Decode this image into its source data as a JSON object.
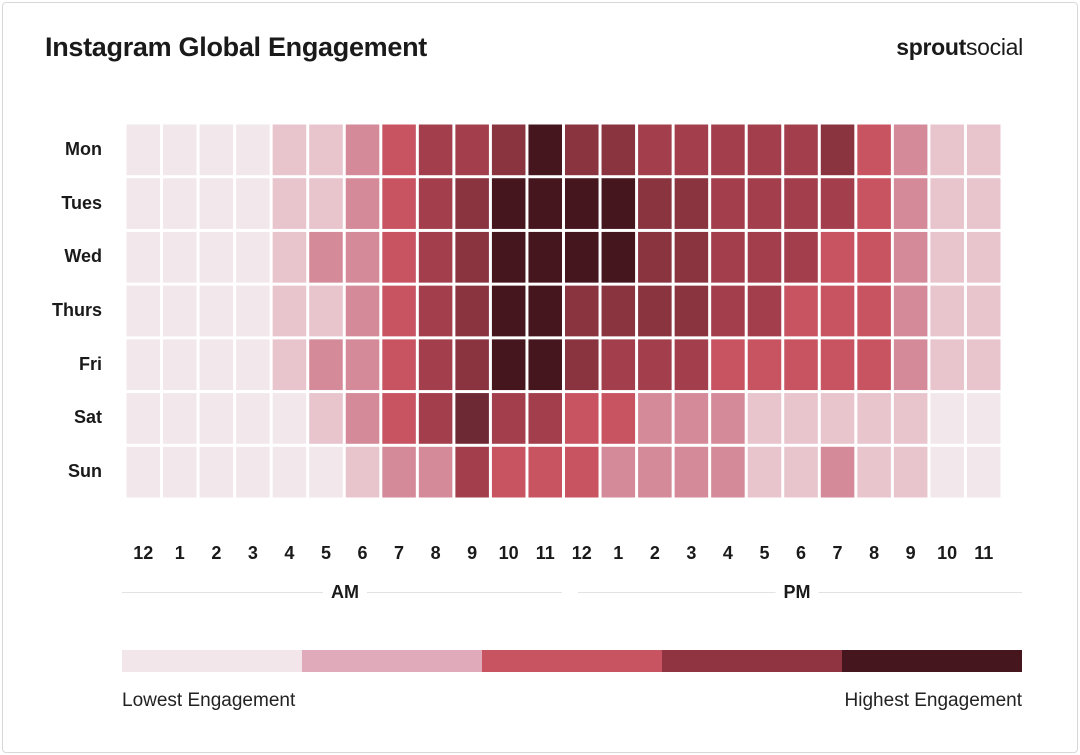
{
  "title": "Instagram Global Engagement",
  "brand": {
    "bold": "sprout",
    "light": "social"
  },
  "chart_data": {
    "type": "heatmap",
    "title": "Instagram Global Engagement",
    "rows": [
      "Mon",
      "Tues",
      "Wed",
      "Thurs",
      "Fri",
      "Sat",
      "Sun"
    ],
    "columns": [
      "12",
      "1",
      "2",
      "3",
      "4",
      "5",
      "6",
      "7",
      "8",
      "9",
      "10",
      "11",
      "12",
      "1",
      "2",
      "3",
      "4",
      "5",
      "6",
      "7",
      "8",
      "9",
      "10",
      "11"
    ],
    "column_groups": [
      "AM",
      "PM"
    ],
    "scale": {
      "min": 1,
      "max": 8,
      "note_low": "Lowest Engagement",
      "note_high": "Highest Engagement"
    },
    "values": [
      [
        1,
        1,
        1,
        1,
        2,
        2,
        3,
        4,
        5,
        5,
        6,
        8,
        6,
        6,
        5,
        5,
        5,
        5,
        5,
        6,
        4,
        3,
        2,
        2
      ],
      [
        1,
        1,
        1,
        1,
        2,
        2,
        3,
        4,
        5,
        6,
        8,
        8,
        8,
        8,
        6,
        6,
        5,
        5,
        5,
        5,
        4,
        3,
        2,
        2
      ],
      [
        1,
        1,
        1,
        1,
        2,
        3,
        3,
        4,
        5,
        6,
        8,
        8,
        8,
        8,
        6,
        6,
        5,
        5,
        5,
        4,
        4,
        3,
        2,
        2
      ],
      [
        1,
        1,
        1,
        1,
        2,
        2,
        3,
        4,
        5,
        6,
        8,
        8,
        6,
        6,
        6,
        6,
        5,
        5,
        4,
        4,
        4,
        3,
        2,
        2
      ],
      [
        1,
        1,
        1,
        1,
        2,
        3,
        3,
        4,
        5,
        6,
        8,
        8,
        6,
        5,
        5,
        5,
        4,
        4,
        4,
        4,
        4,
        3,
        2,
        2
      ],
      [
        1,
        1,
        1,
        1,
        1,
        2,
        3,
        4,
        5,
        7,
        5,
        5,
        4,
        4,
        3,
        3,
        3,
        2,
        2,
        2,
        2,
        2,
        1,
        1
      ],
      [
        1,
        1,
        1,
        1,
        1,
        1,
        2,
        3,
        3,
        5,
        4,
        4,
        4,
        3,
        3,
        3,
        3,
        2,
        2,
        3,
        2,
        2,
        1,
        1
      ]
    ],
    "level_colors": [
      "#f2e8ec",
      "#e8c4cd",
      "#d48a98",
      "#c85462",
      "#a33f4d",
      "#8a3440",
      "#6e2a34",
      "#45161e"
    ]
  },
  "legend": {
    "colors": [
      "#f2e6ea",
      "#e0aabb",
      "#c85462",
      "#8f3440",
      "#45161e"
    ],
    "low_label": "Lowest Engagement",
    "high_label": "Highest Engagement"
  }
}
